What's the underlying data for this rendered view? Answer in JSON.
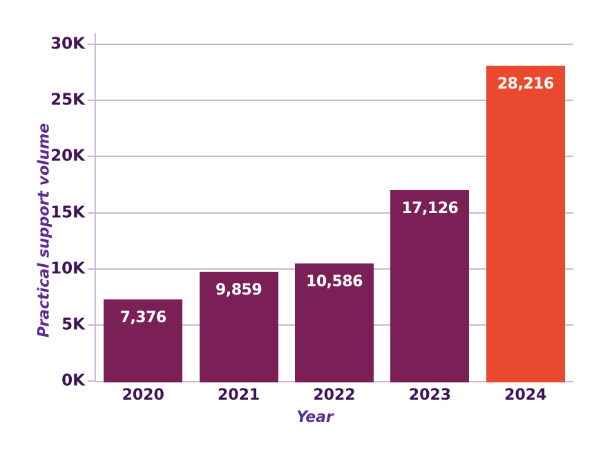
{
  "chart_data": {
    "type": "bar",
    "title": "",
    "xlabel": "Year",
    "ylabel": "Practical support volume",
    "categories": [
      "2020",
      "2021",
      "2022",
      "2023",
      "2024"
    ],
    "values": [
      7376,
      9859,
      10586,
      17126,
      28216
    ],
    "value_labels": [
      "7,376",
      "9,859",
      "10,586",
      "17,126",
      "28,216"
    ],
    "y_ticks": [
      0,
      5000,
      10000,
      15000,
      20000,
      25000,
      30000
    ],
    "y_tick_labels": [
      "0K",
      "5K",
      "10K",
      "15K",
      "20K",
      "25K",
      "30K"
    ],
    "ylim": [
      0,
      30000
    ],
    "grid": "horizontal",
    "legend": "none",
    "highlight_category": "2024",
    "colors": {
      "bar": "#7A2057",
      "bar_highlight": "#E8492F",
      "grid": "#C6B9DB",
      "axis_spine": "#C6B9DB",
      "tick_label": "#3F1155",
      "axis_title": "#5C2C92",
      "value_label": "#FFFFFF",
      "background": "#FFFFFF"
    }
  }
}
